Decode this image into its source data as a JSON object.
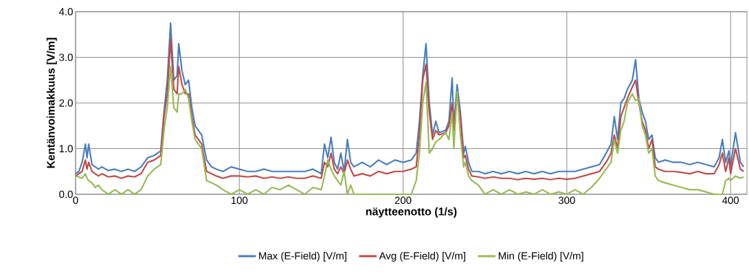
{
  "chart_data": {
    "type": "line",
    "xlabel": "näytteenotto (1/s)",
    "ylabel": "Kentänvoimakkuus [V/m]",
    "x": [
      0,
      2,
      4,
      6,
      7,
      8,
      10,
      12,
      14,
      16,
      20,
      24,
      28,
      32,
      36,
      40,
      44,
      48,
      52,
      54,
      56,
      58,
      60,
      62,
      63,
      65,
      67,
      69,
      71,
      73,
      75,
      77,
      80,
      83,
      86,
      90,
      95,
      100,
      105,
      110,
      115,
      120,
      125,
      130,
      135,
      140,
      145,
      150,
      152,
      154,
      156,
      158,
      160,
      162,
      164,
      166,
      168,
      170,
      175,
      180,
      185,
      190,
      195,
      200,
      205,
      208,
      210,
      212,
      214,
      216,
      218,
      220,
      222,
      226,
      228,
      230,
      231,
      233,
      235,
      237,
      238,
      240,
      242,
      246,
      250,
      255,
      260,
      265,
      270,
      275,
      280,
      285,
      290,
      295,
      300,
      305,
      310,
      315,
      320,
      324,
      327,
      329,
      331,
      333,
      335,
      337,
      340,
      342,
      344,
      346,
      348,
      350,
      352,
      354,
      356,
      360,
      365,
      370,
      375,
      380,
      385,
      390,
      393,
      395,
      397,
      399,
      400,
      403,
      406,
      408
    ],
    "series": [
      {
        "name": "Max (E-Field) [V/m]",
        "color": "#4a7ebb",
        "values": [
          0.45,
          0.5,
          0.7,
          1.1,
          0.8,
          1.1,
          0.65,
          0.6,
          0.55,
          0.6,
          0.52,
          0.55,
          0.5,
          0.55,
          0.5,
          0.6,
          0.8,
          0.85,
          0.95,
          1.8,
          2.5,
          3.75,
          2.5,
          2.6,
          3.3,
          2.7,
          2.4,
          2.5,
          1.9,
          1.5,
          1.4,
          1.3,
          0.75,
          0.6,
          0.55,
          0.5,
          0.6,
          0.55,
          0.5,
          0.5,
          0.55,
          0.5,
          0.5,
          0.5,
          0.5,
          0.5,
          0.55,
          0.45,
          1.1,
          0.8,
          1.25,
          0.7,
          0.55,
          0.9,
          0.5,
          1.2,
          0.7,
          0.6,
          0.7,
          0.6,
          0.75,
          0.65,
          0.75,
          0.7,
          0.75,
          0.9,
          1.6,
          2.6,
          3.3,
          2.0,
          1.3,
          1.6,
          1.35,
          1.4,
          1.6,
          2.55,
          1.5,
          2.4,
          1.8,
          0.9,
          1.05,
          0.7,
          0.5,
          0.5,
          0.45,
          0.5,
          0.45,
          0.5,
          0.45,
          0.5,
          0.45,
          0.5,
          0.45,
          0.5,
          0.5,
          0.5,
          0.55,
          0.6,
          0.65,
          0.9,
          1.1,
          1.7,
          1.2,
          2.0,
          2.1,
          2.3,
          2.5,
          2.95,
          2.1,
          1.8,
          1.6,
          1.2,
          1.3,
          0.8,
          0.7,
          0.75,
          0.7,
          0.7,
          0.65,
          0.7,
          0.65,
          0.6,
          0.8,
          1.2,
          0.7,
          0.95,
          0.6,
          1.35,
          0.7,
          0.6
        ]
      },
      {
        "name": "Avg (E-Field) [V/m]",
        "color": "#be4b48",
        "values": [
          0.4,
          0.45,
          0.5,
          0.75,
          0.55,
          0.7,
          0.5,
          0.45,
          0.4,
          0.45,
          0.38,
          0.4,
          0.35,
          0.4,
          0.38,
          0.45,
          0.7,
          0.75,
          0.85,
          1.7,
          2.2,
          3.4,
          2.3,
          2.2,
          2.8,
          2.4,
          2.2,
          2.2,
          1.7,
          1.3,
          1.2,
          1.1,
          0.5,
          0.45,
          0.4,
          0.35,
          0.4,
          0.4,
          0.38,
          0.4,
          0.35,
          0.38,
          0.35,
          0.38,
          0.35,
          0.35,
          0.4,
          0.35,
          0.7,
          0.6,
          0.9,
          0.55,
          0.45,
          0.6,
          0.45,
          0.75,
          0.55,
          0.4,
          0.45,
          0.4,
          0.5,
          0.45,
          0.5,
          0.5,
          0.55,
          0.6,
          1.3,
          2.5,
          2.85,
          1.8,
          1.2,
          1.4,
          1.3,
          1.35,
          1.5,
          2.0,
          1.4,
          2.2,
          1.7,
          0.8,
          0.85,
          0.55,
          0.4,
          0.38,
          0.35,
          0.38,
          0.35,
          0.35,
          0.32,
          0.35,
          0.33,
          0.35,
          0.32,
          0.35,
          0.33,
          0.35,
          0.4,
          0.45,
          0.5,
          0.7,
          0.9,
          1.3,
          1.0,
          1.7,
          1.9,
          2.1,
          2.35,
          2.5,
          2.0,
          1.6,
          1.4,
          1.0,
          1.2,
          0.6,
          0.55,
          0.5,
          0.5,
          0.48,
          0.45,
          0.5,
          0.45,
          0.45,
          0.65,
          0.9,
          0.5,
          0.8,
          0.45,
          1.0,
          0.55,
          0.5
        ]
      },
      {
        "name": "Min (E-Field) [V/m]",
        "color": "#98b954",
        "values": [
          0.4,
          0.38,
          0.35,
          0.45,
          0.35,
          0.3,
          0.25,
          0.15,
          0.2,
          0.1,
          0.0,
          0.1,
          0.0,
          0.1,
          0.0,
          0.1,
          0.4,
          0.55,
          0.65,
          1.4,
          1.9,
          2.8,
          1.9,
          1.8,
          2.2,
          2.2,
          2.3,
          2.1,
          1.6,
          1.2,
          1.1,
          1.0,
          0.3,
          0.25,
          0.2,
          0.1,
          0.0,
          0.1,
          0.0,
          0.1,
          0.0,
          0.15,
          0.1,
          0.2,
          0.1,
          0.0,
          0.15,
          0.1,
          0.4,
          0.75,
          0.55,
          0.4,
          0.3,
          0.2,
          0.5,
          0.0,
          0.2,
          0.0,
          0.0,
          0.0,
          0.0,
          0.0,
          0.0,
          0.0,
          0.0,
          0.3,
          0.9,
          2.0,
          2.45,
          0.9,
          1.0,
          1.15,
          1.2,
          1.35,
          1.2,
          1.8,
          1.0,
          2.25,
          1.3,
          0.6,
          0.7,
          0.4,
          0.3,
          0.2,
          0.0,
          0.1,
          0.0,
          0.1,
          0.0,
          0.05,
          0.0,
          0.1,
          0.0,
          0.05,
          0.0,
          0.1,
          0.0,
          0.15,
          0.35,
          0.55,
          0.7,
          1.2,
          0.9,
          1.4,
          1.6,
          2.0,
          2.2,
          2.05,
          2.1,
          1.5,
          1.3,
          0.9,
          1.0,
          0.4,
          0.3,
          0.25,
          0.2,
          0.15,
          0.1,
          0.1,
          0.05,
          0.0,
          0.0,
          0.0,
          0.3,
          0.35,
          0.3,
          0.4,
          0.35,
          0.38
        ]
      }
    ],
    "xlim": [
      0,
      410
    ],
    "ylim": [
      0,
      4
    ],
    "xticks": [
      0,
      100,
      200,
      300,
      400
    ],
    "yticks": [
      {
        "value": 0,
        "label": "0.0"
      },
      {
        "value": 1,
        "label": "1.0"
      },
      {
        "value": 2,
        "label": "2.0"
      },
      {
        "value": 3,
        "label": "3.0"
      },
      {
        "value": 4,
        "label": "4.0"
      }
    ],
    "grid": true,
    "legend": "bottom",
    "line_style": "solid"
  }
}
